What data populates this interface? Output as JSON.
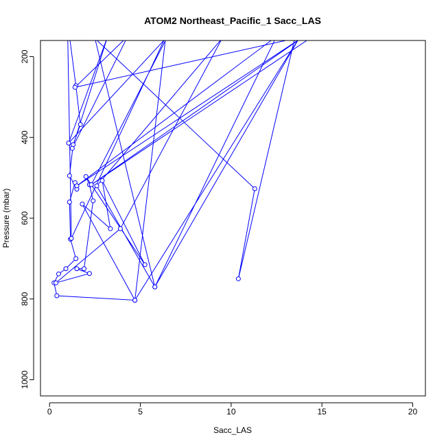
{
  "chart_data": {
    "type": "line",
    "title": "ATOM2 Northeast_Pacific_1 Sacc_LAS",
    "xlabel": "Sacc_LAS",
    "ylabel": "Pressure (mbar)",
    "xlim": [
      -0.5,
      20.7
    ],
    "ylim": [
      1040,
      160
    ],
    "y_reversed": true,
    "x_ticks": [
      0,
      5,
      10,
      15,
      20
    ],
    "y_ticks": [
      200,
      400,
      600,
      800,
      1000
    ],
    "grid": false,
    "legend": "none",
    "colors": {
      "series": "#0000ff",
      "axes": "#000000",
      "background": "#ffffff"
    },
    "series": [
      {
        "points": [
          [
            1.1,
            150
          ],
          [
            1.45,
            272
          ],
          [
            1.7,
            368
          ],
          [
            1.3,
            418
          ],
          [
            1.1,
            495
          ],
          [
            1.5,
            528
          ],
          [
            1.4,
            512
          ],
          [
            1.1,
            560
          ],
          [
            1.15,
            652
          ],
          [
            1.45,
            700
          ],
          [
            0.9,
            725
          ],
          [
            0.5,
            738
          ],
          [
            0.25,
            760
          ],
          [
            0.4,
            792
          ],
          [
            4.7,
            803
          ],
          [
            1.8,
            565
          ],
          [
            3.35,
            626
          ],
          [
            2.9,
            507
          ],
          [
            5.25,
            715
          ],
          [
            2.0,
            497
          ],
          [
            2.2,
            517
          ],
          [
            2.4,
            557
          ],
          [
            1.9,
            725
          ],
          [
            1.5,
            725
          ],
          [
            2.2,
            737
          ],
          [
            0.35,
            760
          ],
          [
            3.9,
            626
          ],
          [
            9.5,
            155
          ],
          [
            2.6,
            520
          ],
          [
            5.8,
            770
          ],
          [
            2.5,
            155
          ],
          [
            11.3,
            527
          ],
          [
            10.4,
            750
          ],
          [
            13.5,
            155
          ],
          [
            1.4,
            276
          ],
          [
            4.3,
            150
          ],
          [
            1.25,
            427
          ],
          [
            3.2,
            150
          ],
          [
            1.05,
            414
          ],
          [
            6.5,
            150
          ],
          [
            2.3,
            517
          ],
          [
            14.5,
            150
          ],
          [
            2.3,
            517
          ],
          [
            14.0,
            150
          ],
          [
            1.5,
            520
          ],
          [
            12.5,
            150
          ],
          [
            5.8,
            770
          ],
          [
            13.8,
            150
          ],
          [
            4.7,
            803
          ],
          [
            6.4,
            150
          ],
          [
            1.2,
            650
          ],
          [
            1.0,
            150
          ]
        ]
      }
    ]
  }
}
